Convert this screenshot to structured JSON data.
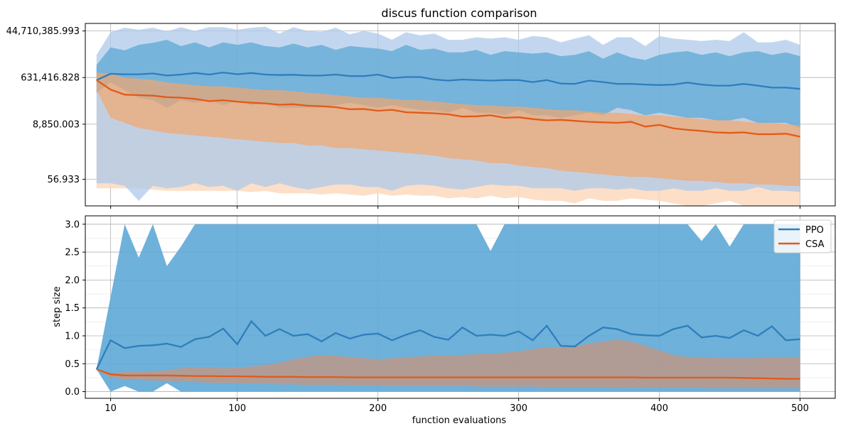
{
  "chart_data": [
    {
      "type": "line",
      "title": "discus function comparison",
      "xlabel": "",
      "ylabel": "",
      "yscale": "log10",
      "xlim": [
        -8,
        525
      ],
      "ylim_log10": [
        0.7,
        7.95
      ],
      "grid": true,
      "x_tick_values": [
        10,
        100,
        200,
        300,
        400,
        500
      ],
      "y_tick_values_log10": [
        1.75536,
        3.94695,
        5.80032,
        7.65041
      ],
      "y_tick_labels": [
        "56.933",
        "8,850.003",
        "631,416.828",
        "44,710,385.993"
      ],
      "x": [
        0,
        10,
        20,
        30,
        40,
        50,
        60,
        70,
        80,
        90,
        100,
        110,
        120,
        130,
        140,
        150,
        160,
        170,
        180,
        190,
        200,
        210,
        220,
        230,
        240,
        250,
        260,
        270,
        280,
        290,
        300,
        310,
        320,
        330,
        340,
        350,
        360,
        370,
        380,
        390,
        400,
        410,
        420,
        430,
        440,
        450,
        460,
        470,
        480,
        490,
        500
      ],
      "series": [
        {
          "name": "PPO",
          "color": "#2e7ebc",
          "band_outer_color": "#aec9ea",
          "band_inner_color": "#5ea8d6",
          "mean_log10": [
            5.7,
            5.95,
            5.93,
            5.93,
            5.96,
            5.88,
            5.92,
            5.98,
            5.92,
            6.0,
            5.93,
            5.98,
            5.92,
            5.9,
            5.91,
            5.88,
            5.88,
            5.92,
            5.86,
            5.86,
            5.92,
            5.78,
            5.82,
            5.82,
            5.72,
            5.68,
            5.72,
            5.7,
            5.68,
            5.7,
            5.7,
            5.62,
            5.7,
            5.56,
            5.55,
            5.68,
            5.62,
            5.55,
            5.55,
            5.52,
            5.5,
            5.52,
            5.6,
            5.52,
            5.48,
            5.48,
            5.55,
            5.48,
            5.4,
            5.4,
            5.35
          ],
          "outer_upper_log10": [
            6.7,
            7.6,
            7.78,
            7.7,
            7.78,
            7.63,
            7.8,
            7.65,
            7.8,
            7.8,
            7.7,
            7.78,
            7.82,
            7.55,
            7.8,
            7.65,
            7.62,
            7.78,
            7.52,
            7.65,
            7.55,
            7.3,
            7.6,
            7.48,
            7.55,
            7.3,
            7.3,
            7.4,
            7.35,
            7.4,
            7.3,
            7.45,
            7.4,
            7.2,
            7.35,
            7.48,
            7.1,
            7.4,
            7.4,
            7.05,
            7.45,
            7.35,
            7.3,
            7.25,
            7.3,
            7.25,
            7.6,
            7.2,
            7.2,
            7.3,
            7.1
          ],
          "inner_upper_log10": [
            6.3,
            7.0,
            6.88,
            7.1,
            7.18,
            7.3,
            7.05,
            7.2,
            7.0,
            7.2,
            7.1,
            7.2,
            7.05,
            7.0,
            7.15,
            7.0,
            7.1,
            6.9,
            7.05,
            7.0,
            6.95,
            6.85,
            7.1,
            6.9,
            6.95,
            6.8,
            6.8,
            6.9,
            6.7,
            6.85,
            6.8,
            6.75,
            6.8,
            6.65,
            6.7,
            6.85,
            6.55,
            6.8,
            6.6,
            6.5,
            6.7,
            6.8,
            6.85,
            6.7,
            6.8,
            6.65,
            6.8,
            6.85,
            6.7,
            6.8,
            6.65
          ],
          "inner_lower_log10": [
            5.2,
            5.6,
            5.3,
            5.0,
            4.9,
            4.6,
            4.9,
            4.8,
            4.9,
            4.7,
            4.9,
            4.7,
            4.8,
            4.6,
            4.6,
            4.6,
            4.6,
            4.7,
            4.8,
            4.7,
            4.6,
            4.7,
            4.6,
            4.5,
            4.5,
            4.4,
            4.6,
            4.4,
            4.4,
            4.3,
            4.5,
            4.3,
            4.3,
            4.2,
            4.3,
            4.4,
            4.3,
            4.6,
            4.5,
            4.3,
            4.4,
            4.3,
            4.2,
            4.2,
            4.1,
            4.1,
            4.2,
            4.0,
            4.0,
            4.0,
            3.8
          ],
          "outer_lower_log10": [
            1.6,
            1.6,
            1.5,
            0.9,
            1.5,
            1.4,
            1.45,
            1.6,
            1.45,
            1.5,
            1.3,
            1.6,
            1.45,
            1.6,
            1.45,
            1.35,
            1.45,
            1.55,
            1.55,
            1.45,
            1.45,
            1.3,
            1.5,
            1.55,
            1.5,
            1.4,
            1.35,
            1.45,
            1.55,
            1.5,
            1.5,
            1.4,
            1.4,
            1.4,
            1.3,
            1.4,
            1.4,
            1.35,
            1.4,
            1.3,
            1.3,
            1.4,
            1.3,
            1.3,
            1.4,
            1.3,
            1.3,
            1.45,
            1.3,
            1.3,
            1.25
          ]
        },
        {
          "name": "CSA",
          "color": "#e25a17",
          "band_outer_color": "#fdd9be",
          "band_inner_color": "#f2a66e",
          "mean_log10": [
            5.7,
            5.32,
            5.12,
            5.1,
            5.08,
            5.02,
            5.0,
            4.95,
            4.86,
            4.9,
            4.84,
            4.8,
            4.77,
            4.72,
            4.74,
            4.68,
            4.66,
            4.62,
            4.54,
            4.55,
            4.48,
            4.52,
            4.42,
            4.4,
            4.38,
            4.34,
            4.25,
            4.26,
            4.3,
            4.2,
            4.22,
            4.15,
            4.1,
            4.12,
            4.08,
            4.04,
            4.02,
            4.0,
            4.04,
            3.85,
            3.92,
            3.78,
            3.72,
            3.68,
            3.62,
            3.6,
            3.62,
            3.55,
            3.55,
            3.57,
            3.45
          ],
          "outer_upper_log10": [
            6.2,
            6.2,
            5.9,
            5.7,
            5.4,
            5.5,
            5.5,
            5.6,
            5.5,
            5.5,
            5.4,
            5.4,
            5.4,
            5.3,
            5.2,
            5.2,
            5.15,
            5.1,
            5.1,
            5.1,
            5.0,
            5.0,
            4.9,
            4.9,
            4.8,
            4.9,
            4.8,
            4.7,
            4.8,
            4.7,
            4.7,
            4.6,
            4.6,
            4.6,
            4.6,
            4.5,
            4.5,
            4.6,
            4.5,
            4.4,
            4.4,
            4.4,
            4.3,
            4.3,
            4.3,
            4.2,
            4.3,
            4.2,
            4.2,
            4.1,
            4.0
          ],
          "inner_upper_log10": [
            6.0,
            5.95,
            5.8,
            5.75,
            5.7,
            5.6,
            5.55,
            5.5,
            5.45,
            5.45,
            5.4,
            5.35,
            5.3,
            5.3,
            5.25,
            5.2,
            5.15,
            5.1,
            5.05,
            5.0,
            5.0,
            4.95,
            4.9,
            4.9,
            4.85,
            4.8,
            4.75,
            4.7,
            4.7,
            4.65,
            4.65,
            4.6,
            4.55,
            4.5,
            4.5,
            4.45,
            4.4,
            4.4,
            4.35,
            4.3,
            4.3,
            4.25,
            4.2,
            4.15,
            4.1,
            4.1,
            4.05,
            4.0,
            4.0,
            3.95,
            3.9
          ],
          "inner_lower_log10": [
            5.3,
            4.2,
            4.0,
            3.8,
            3.7,
            3.6,
            3.55,
            3.5,
            3.45,
            3.4,
            3.35,
            3.3,
            3.25,
            3.2,
            3.2,
            3.1,
            3.1,
            3.0,
            3.0,
            2.95,
            2.9,
            2.85,
            2.8,
            2.75,
            2.7,
            2.6,
            2.55,
            2.5,
            2.4,
            2.4,
            2.3,
            2.25,
            2.2,
            2.1,
            2.05,
            2.0,
            1.95,
            1.9,
            1.85,
            1.85,
            1.8,
            1.75,
            1.7,
            1.7,
            1.65,
            1.6,
            1.6,
            1.55,
            1.55,
            1.5,
            1.5
          ],
          "outer_lower_log10": [
            1.4,
            1.4,
            1.4,
            1.4,
            1.35,
            1.3,
            1.3,
            1.3,
            1.3,
            1.3,
            1.3,
            1.25,
            1.3,
            1.2,
            1.2,
            1.2,
            1.15,
            1.2,
            1.15,
            1.1,
            1.2,
            1.1,
            1.15,
            1.1,
            1.1,
            1.0,
            1.05,
            1.0,
            1.1,
            1.0,
            1.05,
            0.95,
            0.9,
            0.9,
            0.8,
            1.0,
            0.9,
            0.9,
            1.0,
            0.95,
            0.9,
            0.8,
            0.6,
            0.5,
            0.8,
            0.9,
            0.5,
            0.5,
            0.5,
            0.4,
            0.7
          ]
        }
      ]
    },
    {
      "type": "line",
      "title": "",
      "xlabel": "function evaluations",
      "ylabel": "step size",
      "xlim": [
        -8,
        525
      ],
      "ylim": [
        -0.12,
        3.15
      ],
      "grid": true,
      "legend": "top-right",
      "x_tick_values": [
        10,
        100,
        200,
        300,
        400,
        500
      ],
      "x_tick_labels": [
        "10",
        "100",
        "200",
        "300",
        "400",
        "500"
      ],
      "y_tick_values": [
        0.0,
        0.5,
        1.0,
        1.5,
        2.0,
        2.5,
        3.0
      ],
      "y_tick_labels": [
        "0.0",
        "0.5",
        "1.0",
        "1.5",
        "2.0",
        "2.5",
        "3.0"
      ],
      "x": [
        0,
        10,
        20,
        30,
        40,
        50,
        60,
        70,
        80,
        90,
        100,
        110,
        120,
        130,
        140,
        150,
        160,
        170,
        180,
        190,
        200,
        210,
        220,
        230,
        240,
        250,
        260,
        270,
        280,
        290,
        300,
        310,
        320,
        330,
        340,
        350,
        360,
        370,
        380,
        390,
        400,
        410,
        420,
        430,
        440,
        450,
        460,
        470,
        480,
        490,
        500
      ],
      "series": [
        {
          "name": "PPO",
          "color": "#2e7ebc",
          "band_color": "#5ea8d6",
          "values": [
            0.4,
            0.92,
            0.78,
            0.82,
            0.83,
            0.86,
            0.8,
            0.94,
            0.98,
            1.13,
            0.85,
            1.26,
            1.0,
            1.12,
            1.0,
            1.03,
            0.9,
            1.05,
            0.95,
            1.02,
            1.04,
            0.92,
            1.02,
            1.1,
            0.98,
            0.93,
            1.15,
            1.0,
            1.02,
            1.0,
            1.08,
            0.92,
            1.18,
            0.82,
            0.81,
            1.0,
            1.15,
            1.12,
            1.03,
            1.01,
            1.0,
            1.12,
            1.18,
            0.97,
            1.0,
            0.96,
            1.1,
            1.0,
            1.17,
            0.92,
            0.94
          ],
          "band_upper": [
            0.4,
            1.7,
            3.0,
            2.4,
            3.0,
            2.25,
            2.6,
            3.0,
            3.0,
            3.0,
            3.0,
            3.0,
            3.0,
            3.0,
            3.0,
            3.0,
            3.0,
            3.0,
            3.0,
            3.0,
            3.0,
            3.0,
            3.0,
            3.0,
            3.0,
            3.0,
            3.0,
            3.0,
            2.52,
            3.0,
            3.0,
            3.0,
            3.0,
            3.0,
            3.0,
            3.0,
            3.0,
            3.0,
            3.0,
            3.0,
            3.0,
            3.0,
            3.0,
            2.7,
            3.0,
            2.6,
            3.0,
            3.0,
            3.0,
            3.0,
            3.0
          ],
          "band_lower": [
            0.4,
            0.0,
            0.1,
            0.0,
            0.0,
            0.15,
            0.0,
            0.0,
            0.0,
            0.0,
            0.0,
            0.0,
            0.0,
            0.0,
            0.0,
            0.0,
            0.0,
            0.0,
            0.0,
            0.0,
            0.0,
            0.0,
            0.0,
            0.0,
            0.0,
            0.0,
            0.0,
            0.0,
            0.0,
            0.0,
            0.0,
            0.0,
            0.0,
            0.0,
            0.0,
            0.0,
            0.0,
            0.0,
            0.0,
            0.0,
            0.0,
            0.0,
            0.0,
            0.0,
            0.0,
            0.0,
            0.0,
            0.0,
            0.0,
            0.0,
            0.0
          ]
        },
        {
          "name": "CSA",
          "color": "#e25a17",
          "band_color": "#c8957d",
          "values": [
            0.4,
            0.31,
            0.29,
            0.29,
            0.29,
            0.29,
            0.285,
            0.28,
            0.28,
            0.275,
            0.275,
            0.27,
            0.265,
            0.265,
            0.265,
            0.26,
            0.26,
            0.26,
            0.255,
            0.255,
            0.255,
            0.255,
            0.255,
            0.255,
            0.255,
            0.255,
            0.255,
            0.255,
            0.255,
            0.255,
            0.255,
            0.255,
            0.255,
            0.255,
            0.255,
            0.255,
            0.255,
            0.255,
            0.255,
            0.25,
            0.25,
            0.25,
            0.25,
            0.25,
            0.25,
            0.25,
            0.245,
            0.24,
            0.235,
            0.23,
            0.23
          ],
          "band_upper": [
            0.4,
            0.33,
            0.35,
            0.36,
            0.37,
            0.38,
            0.42,
            0.44,
            0.44,
            0.42,
            0.43,
            0.45,
            0.48,
            0.52,
            0.58,
            0.62,
            0.66,
            0.64,
            0.62,
            0.6,
            0.58,
            0.6,
            0.62,
            0.63,
            0.65,
            0.65,
            0.66,
            0.67,
            0.68,
            0.7,
            0.72,
            0.76,
            0.8,
            0.8,
            0.82,
            0.86,
            0.9,
            0.93,
            0.9,
            0.82,
            0.74,
            0.66,
            0.62,
            0.62,
            0.6,
            0.6,
            0.6,
            0.6,
            0.62,
            0.62,
            0.62
          ],
          "band_lower": [
            0.4,
            0.25,
            0.22,
            0.21,
            0.2,
            0.19,
            0.18,
            0.17,
            0.16,
            0.15,
            0.15,
            0.14,
            0.14,
            0.13,
            0.13,
            0.12,
            0.12,
            0.12,
            0.11,
            0.11,
            0.11,
            0.1,
            0.1,
            0.1,
            0.1,
            0.1,
            0.1,
            0.09,
            0.09,
            0.09,
            0.09,
            0.09,
            0.08,
            0.08,
            0.08,
            0.08,
            0.08,
            0.07,
            0.07,
            0.07,
            0.07,
            0.07,
            0.07,
            0.07,
            0.06,
            0.06,
            0.06,
            0.06,
            0.06,
            0.06,
            0.06
          ]
        }
      ]
    }
  ]
}
